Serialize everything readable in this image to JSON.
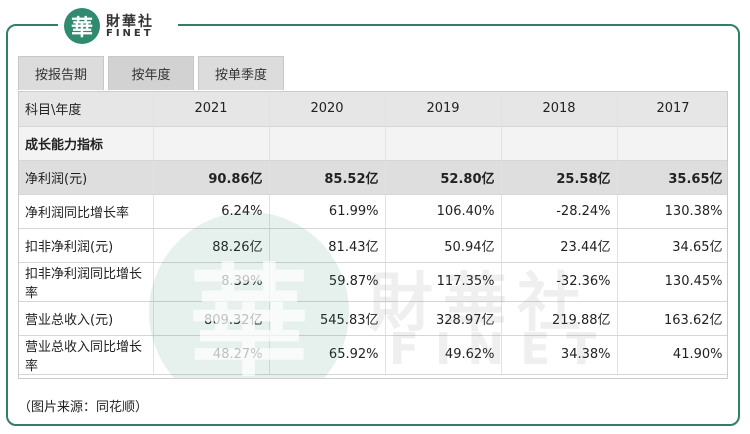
{
  "logo": {
    "seal": "華",
    "cn": "財華社",
    "en": "FINET"
  },
  "tabs": [
    {
      "label": "按报告期"
    },
    {
      "label": "按年度"
    },
    {
      "label": "按单季度"
    }
  ],
  "table": {
    "header": [
      "科目\\年度",
      "2021",
      "2020",
      "2019",
      "2018",
      "2017"
    ],
    "section": "成长能力指标",
    "rows": [
      {
        "label": "净利润(元)",
        "values": [
          "90.86亿",
          "85.52亿",
          "52.80亿",
          "25.58亿",
          "35.65亿"
        ]
      },
      {
        "label": "净利润同比增长率",
        "values": [
          "6.24%",
          "61.99%",
          "106.40%",
          "-28.24%",
          "130.38%"
        ]
      },
      {
        "label": "扣非净利润(元)",
        "values": [
          "88.26亿",
          "81.43亿",
          "50.94亿",
          "23.44亿",
          "34.65亿"
        ]
      },
      {
        "label": "扣非净利润同比增长率",
        "values": [
          "8.39%",
          "59.87%",
          "117.35%",
          "-32.36%",
          "130.45%"
        ]
      },
      {
        "label": "营业总收入(元)",
        "values": [
          "809.32亿",
          "545.83亿",
          "328.97亿",
          "219.88亿",
          "163.62亿"
        ]
      },
      {
        "label": "营业总收入同比增长率",
        "values": [
          "48.27%",
          "65.92%",
          "49.62%",
          "34.38%",
          "41.90%"
        ]
      }
    ]
  },
  "source": "（图片来源：同花顺）"
}
